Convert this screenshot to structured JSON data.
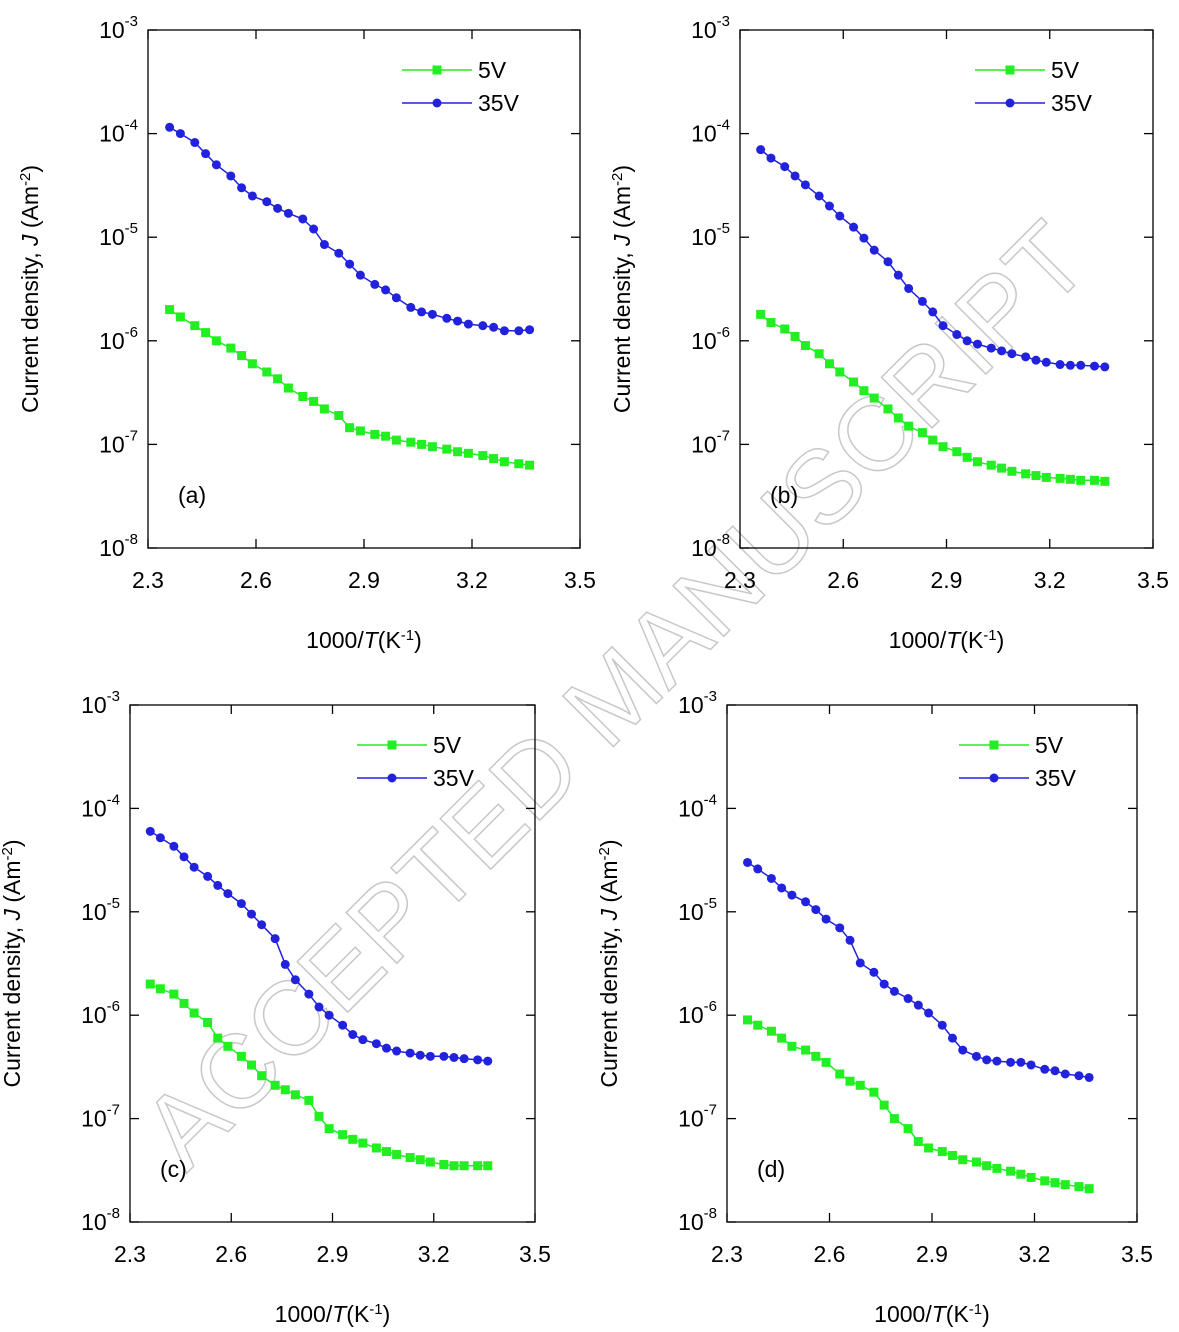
{
  "watermark": "ACCEPTED MANUSCRIPT",
  "chart_data": [
    {
      "type": "line",
      "annotation": "(a)",
      "log_y": true,
      "legend": "upper right",
      "xlabel": [
        "1000/",
        "T",
        "(K",
        "-1",
        ")"
      ],
      "ylabel": [
        "Current density, ",
        "J",
        " (Am",
        "-2",
        ")"
      ],
      "xlim": [
        2.3,
        3.5
      ],
      "xticks": [
        2.3,
        2.6,
        2.9,
        3.2,
        3.5
      ],
      "ylim": [
        1e-08,
        0.001
      ],
      "yticks": [
        {
          "value": 1e-08,
          "label": {
            "base": "10",
            "exponent": "-8"
          }
        },
        {
          "value": 1e-07,
          "label": {
            "base": "10",
            "exponent": "-7"
          }
        },
        {
          "value": 1e-06,
          "label": {
            "base": "10",
            "exponent": "-6"
          }
        },
        {
          "value": 1e-05,
          "label": {
            "base": "10",
            "exponent": "-5"
          }
        },
        {
          "value": 0.0001,
          "label": {
            "base": "10",
            "exponent": "-4"
          }
        },
        {
          "value": 0.001,
          "label": {
            "base": "10",
            "exponent": "-3"
          }
        }
      ],
      "x": [
        2.36,
        2.39,
        2.43,
        2.46,
        2.49,
        2.53,
        2.56,
        2.59,
        2.63,
        2.66,
        2.69,
        2.73,
        2.76,
        2.79,
        2.83,
        2.86,
        2.89,
        2.93,
        2.96,
        2.99,
        3.03,
        3.06,
        3.09,
        3.13,
        3.16,
        3.19,
        3.23,
        3.26,
        3.29,
        3.33,
        3.36
      ],
      "series": [
        {
          "name": "5V",
          "color": "#22ee22",
          "marker": "square",
          "values": [
            2e-06,
            1.7e-06,
            1.4e-06,
            1.2e-06,
            1e-06,
            8.5e-07,
            7.2e-07,
            6e-07,
            5e-07,
            4.3e-07,
            3.5e-07,
            2.9e-07,
            2.6e-07,
            2.2e-07,
            1.9e-07,
            1.45e-07,
            1.35e-07,
            1.25e-07,
            1.2e-07,
            1.1e-07,
            1.05e-07,
            1e-07,
            9.5e-08,
            9e-08,
            8.5e-08,
            8.2e-08,
            7.8e-08,
            7.3e-08,
            6.8e-08,
            6.5e-08,
            6.3e-08
          ]
        },
        {
          "name": "35V",
          "color": "#2222dd",
          "marker": "circle",
          "values": [
            0.000115,
            0.0001,
            8.2e-05,
            6.4e-05,
            5e-05,
            3.9e-05,
            3e-05,
            2.5e-05,
            2.2e-05,
            1.9e-05,
            1.7e-05,
            1.5e-05,
            1.2e-05,
            8.5e-06,
            7e-06,
            5.5e-06,
            4.3e-06,
            3.5e-06,
            3.1e-06,
            2.6e-06,
            2.1e-06,
            1.9e-06,
            1.8e-06,
            1.65e-06,
            1.55e-06,
            1.45e-06,
            1.4e-06,
            1.35e-06,
            1.25e-06,
            1.25e-06,
            1.28e-06
          ]
        }
      ]
    },
    {
      "type": "line",
      "annotation": "(b)",
      "log_y": true,
      "legend": "upper right",
      "xlabel": [
        "1000/",
        "T",
        "(K",
        "-1",
        ")"
      ],
      "ylabel": [
        "Current density, ",
        "J",
        " (Am",
        "-2",
        ")"
      ],
      "xlim": [
        2.3,
        3.5
      ],
      "xticks": [
        2.3,
        2.6,
        2.9,
        3.2,
        3.5
      ],
      "ylim": [
        1e-08,
        0.001
      ],
      "yticks": [
        {
          "value": 1e-08,
          "label": {
            "base": "10",
            "exponent": "-8"
          }
        },
        {
          "value": 1e-07,
          "label": {
            "base": "10",
            "exponent": "-7"
          }
        },
        {
          "value": 1e-06,
          "label": {
            "base": "10",
            "exponent": "-6"
          }
        },
        {
          "value": 1e-05,
          "label": {
            "base": "10",
            "exponent": "-5"
          }
        },
        {
          "value": 0.0001,
          "label": {
            "base": "10",
            "exponent": "-4"
          }
        },
        {
          "value": 0.001,
          "label": {
            "base": "10",
            "exponent": "-3"
          }
        }
      ],
      "x": [
        2.36,
        2.39,
        2.43,
        2.46,
        2.49,
        2.53,
        2.56,
        2.59,
        2.63,
        2.66,
        2.69,
        2.73,
        2.76,
        2.79,
        2.83,
        2.86,
        2.89,
        2.93,
        2.96,
        2.99,
        3.03,
        3.06,
        3.09,
        3.13,
        3.16,
        3.19,
        3.23,
        3.26,
        3.29,
        3.33,
        3.36
      ],
      "series": [
        {
          "name": "5V",
          "color": "#22ee22",
          "marker": "square",
          "values": [
            1.8e-06,
            1.5e-06,
            1.3e-06,
            1.1e-06,
            9e-07,
            7.5e-07,
            6e-07,
            5e-07,
            4e-07,
            3.3e-07,
            2.8e-07,
            2.2e-07,
            1.8e-07,
            1.5e-07,
            1.3e-07,
            1.1e-07,
            9.5e-08,
            8.5e-08,
            7.5e-08,
            6.8e-08,
            6.3e-08,
            5.9e-08,
            5.5e-08,
            5.2e-08,
            5e-08,
            4.8e-08,
            4.7e-08,
            4.6e-08,
            4.5e-08,
            4.5e-08,
            4.4e-08
          ]
        },
        {
          "name": "35V",
          "color": "#2222dd",
          "marker": "circle",
          "values": [
            7e-05,
            5.8e-05,
            4.8e-05,
            3.9e-05,
            3.2e-05,
            2.5e-05,
            2e-05,
            1.6e-05,
            1.25e-05,
            9.8e-06,
            7.5e-06,
            5.8e-06,
            4.3e-06,
            3.2e-06,
            2.4e-06,
            1.9e-06,
            1.4e-06,
            1.15e-06,
            1e-06,
            9.3e-07,
            8.5e-07,
            8e-07,
            7.5e-07,
            7e-07,
            6.5e-07,
            6.2e-07,
            5.9e-07,
            5.8e-07,
            5.8e-07,
            5.7e-07,
            5.6e-07
          ]
        }
      ]
    },
    {
      "type": "line",
      "annotation": "(c)",
      "log_y": true,
      "legend": "upper right",
      "xlabel": [
        "1000/",
        "T",
        "(K",
        "-1",
        ")"
      ],
      "ylabel": [
        "Current density, ",
        "J",
        " (Am",
        "-2",
        ")"
      ],
      "xlim": [
        2.3,
        3.5
      ],
      "xticks": [
        2.3,
        2.6,
        2.9,
        3.2,
        3.5
      ],
      "ylim": [
        1e-08,
        0.001
      ],
      "yticks": [
        {
          "value": 1e-08,
          "label": {
            "base": "10",
            "exponent": "-8"
          }
        },
        {
          "value": 1e-07,
          "label": {
            "base": "10",
            "exponent": "-7"
          }
        },
        {
          "value": 1e-06,
          "label": {
            "base": "10",
            "exponent": "-6"
          }
        },
        {
          "value": 1e-05,
          "label": {
            "base": "10",
            "exponent": "-5"
          }
        },
        {
          "value": 0.0001,
          "label": {
            "base": "10",
            "exponent": "-4"
          }
        },
        {
          "value": 0.001,
          "label": {
            "base": "10",
            "exponent": "-3"
          }
        }
      ],
      "x": [
        2.36,
        2.39,
        2.43,
        2.46,
        2.49,
        2.53,
        2.56,
        2.59,
        2.63,
        2.66,
        2.69,
        2.73,
        2.76,
        2.79,
        2.83,
        2.86,
        2.89,
        2.93,
        2.96,
        2.99,
        3.03,
        3.06,
        3.09,
        3.13,
        3.16,
        3.19,
        3.23,
        3.26,
        3.29,
        3.33,
        3.36
      ],
      "series": [
        {
          "name": "5V",
          "color": "#22ee22",
          "marker": "square",
          "values": [
            2e-06,
            1.8e-06,
            1.6e-06,
            1.3e-06,
            1.05e-06,
            8.5e-07,
            6e-07,
            5e-07,
            4e-07,
            3.3e-07,
            2.6e-07,
            2.1e-07,
            1.9e-07,
            1.7e-07,
            1.5e-07,
            1.05e-07,
            8e-08,
            7e-08,
            6.3e-08,
            5.8e-08,
            5.2e-08,
            4.8e-08,
            4.5e-08,
            4.2e-08,
            4e-08,
            3.8e-08,
            3.6e-08,
            3.5e-08,
            3.5e-08,
            3.5e-08,
            3.5e-08
          ]
        },
        {
          "name": "35V",
          "color": "#2222dd",
          "marker": "circle",
          "values": [
            6e-05,
            5.2e-05,
            4.3e-05,
            3.4e-05,
            2.7e-05,
            2.2e-05,
            1.8e-05,
            1.5e-05,
            1.2e-05,
            9.5e-06,
            7.5e-06,
            5.5e-06,
            3.1e-06,
            2.2e-06,
            1.6e-06,
            1.2e-06,
            1e-06,
            8e-07,
            6.5e-07,
            5.8e-07,
            5.3e-07,
            4.8e-07,
            4.5e-07,
            4.3e-07,
            4.1e-07,
            4e-07,
            4e-07,
            3.9e-07,
            3.8e-07,
            3.7e-07,
            3.6e-07
          ]
        }
      ]
    },
    {
      "type": "line",
      "annotation": "(d)",
      "log_y": true,
      "legend": "upper right",
      "xlabel": [
        "1000/",
        "T",
        "(K",
        "-1",
        ")"
      ],
      "ylabel": [
        "Current density, ",
        "J",
        " (Am",
        "-2",
        ")"
      ],
      "xlim": [
        2.3,
        3.5
      ],
      "xticks": [
        2.3,
        2.6,
        2.9,
        3.2,
        3.5
      ],
      "ylim": [
        1e-08,
        0.001
      ],
      "yticks": [
        {
          "value": 1e-08,
          "label": {
            "base": "10",
            "exponent": "-8"
          }
        },
        {
          "value": 1e-07,
          "label": {
            "base": "10",
            "exponent": "-7"
          }
        },
        {
          "value": 1e-06,
          "label": {
            "base": "10",
            "exponent": "-6"
          }
        },
        {
          "value": 1e-05,
          "label": {
            "base": "10",
            "exponent": "-5"
          }
        },
        {
          "value": 0.0001,
          "label": {
            "base": "10",
            "exponent": "-4"
          }
        },
        {
          "value": 0.001,
          "label": {
            "base": "10",
            "exponent": "-3"
          }
        }
      ],
      "x": [
        2.36,
        2.39,
        2.43,
        2.46,
        2.49,
        2.53,
        2.56,
        2.59,
        2.63,
        2.66,
        2.69,
        2.73,
        2.76,
        2.79,
        2.83,
        2.86,
        2.89,
        2.93,
        2.96,
        2.99,
        3.03,
        3.06,
        3.09,
        3.13,
        3.16,
        3.19,
        3.23,
        3.26,
        3.29,
        3.33,
        3.36
      ],
      "series": [
        {
          "name": "5V",
          "color": "#22ee22",
          "marker": "square",
          "values": [
            9e-07,
            8e-07,
            7e-07,
            6e-07,
            5e-07,
            4.6e-07,
            4e-07,
            3.5e-07,
            2.7e-07,
            2.3e-07,
            2.1e-07,
            1.8e-07,
            1.35e-07,
            1e-07,
            8e-08,
            6e-08,
            5.2e-08,
            4.8e-08,
            4.4e-08,
            4e-08,
            3.8e-08,
            3.5e-08,
            3.3e-08,
            3.1e-08,
            2.9e-08,
            2.7e-08,
            2.5e-08,
            2.4e-08,
            2.3e-08,
            2.2e-08,
            2.1e-08
          ]
        },
        {
          "name": "35V",
          "color": "#2222dd",
          "marker": "circle",
          "values": [
            3e-05,
            2.6e-05,
            2.1e-05,
            1.7e-05,
            1.45e-05,
            1.25e-05,
            1.05e-05,
            8.5e-06,
            7e-06,
            5.3e-06,
            3.2e-06,
            2.6e-06,
            2e-06,
            1.7e-06,
            1.45e-06,
            1.25e-06,
            1.05e-06,
            8e-07,
            6e-07,
            4.6e-07,
            4e-07,
            3.7e-07,
            3.6e-07,
            3.5e-07,
            3.5e-07,
            3.3e-07,
            3e-07,
            2.9e-07,
            2.7e-07,
            2.6e-07,
            2.5e-07
          ]
        }
      ]
    }
  ]
}
